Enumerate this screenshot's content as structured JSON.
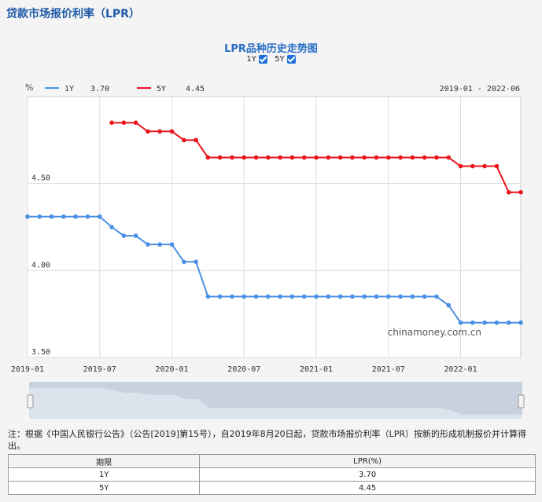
{
  "page_title": "贷款市场报价利率（LPR）",
  "toggles": [
    {
      "label": "1Y",
      "checked": true
    },
    {
      "label": "5Y",
      "checked": true
    }
  ],
  "watermark": "chinamoney.com.cn",
  "note": "注：根据《中国人民银行公告》（公告[2019]第15号），自2019年8月20日起，贷款市场报价利率（LPR）按新的形成机制报价并计算得出。",
  "table": {
    "headers": [
      "期限",
      "LPR(%)"
    ],
    "rows": [
      [
        "1Y",
        "3.70"
      ],
      [
        "5Y",
        "4.45"
      ]
    ]
  },
  "colors": {
    "series_1y": "#4a90e2",
    "series_5y": "#e8141c",
    "title": "#2a6fc4"
  },
  "chart_data": {
    "type": "line",
    "title": "LPR品种历史走势图",
    "ylabel": "%",
    "date_range": "2019-01 - 2022-06",
    "ylim": [
      3.5,
      5.0
    ],
    "yticks": [
      "3.50",
      "4.00",
      "4.50"
    ],
    "xticks": [
      "2019-01",
      "2019-07",
      "2020-01",
      "2020-07",
      "2021-01",
      "2021-07",
      "2022-01"
    ],
    "grid": true,
    "legend_position": "top-left",
    "x": [
      "2019-01",
      "2019-02",
      "2019-03",
      "2019-04",
      "2019-05",
      "2019-06",
      "2019-07",
      "2019-08",
      "2019-09",
      "2019-10",
      "2019-11",
      "2019-12",
      "2020-01",
      "2020-02",
      "2020-03",
      "2020-04",
      "2020-05",
      "2020-06",
      "2020-07",
      "2020-08",
      "2020-09",
      "2020-10",
      "2020-11",
      "2020-12",
      "2021-01",
      "2021-02",
      "2021-03",
      "2021-04",
      "2021-05",
      "2021-06",
      "2021-07",
      "2021-08",
      "2021-09",
      "2021-10",
      "2021-11",
      "2021-12",
      "2022-01",
      "2022-02",
      "2022-03",
      "2022-04",
      "2022-05",
      "2022-06"
    ],
    "series": [
      {
        "name": "1Y",
        "latest": "3.70",
        "values": [
          4.31,
          4.31,
          4.31,
          4.31,
          4.31,
          4.31,
          4.31,
          4.25,
          4.2,
          4.2,
          4.15,
          4.15,
          4.15,
          4.05,
          4.05,
          3.85,
          3.85,
          3.85,
          3.85,
          3.85,
          3.85,
          3.85,
          3.85,
          3.85,
          3.85,
          3.85,
          3.85,
          3.85,
          3.85,
          3.85,
          3.85,
          3.85,
          3.85,
          3.85,
          3.85,
          3.8,
          3.7,
          3.7,
          3.7,
          3.7,
          3.7,
          3.7
        ]
      },
      {
        "name": "5Y",
        "latest": "4.45",
        "values": [
          null,
          null,
          null,
          null,
          null,
          null,
          null,
          4.85,
          4.85,
          4.85,
          4.8,
          4.8,
          4.8,
          4.75,
          4.75,
          4.65,
          4.65,
          4.65,
          4.65,
          4.65,
          4.65,
          4.65,
          4.65,
          4.65,
          4.65,
          4.65,
          4.65,
          4.65,
          4.65,
          4.65,
          4.65,
          4.65,
          4.65,
          4.65,
          4.65,
          4.65,
          4.6,
          4.6,
          4.6,
          4.6,
          4.45,
          4.45
        ]
      }
    ]
  }
}
